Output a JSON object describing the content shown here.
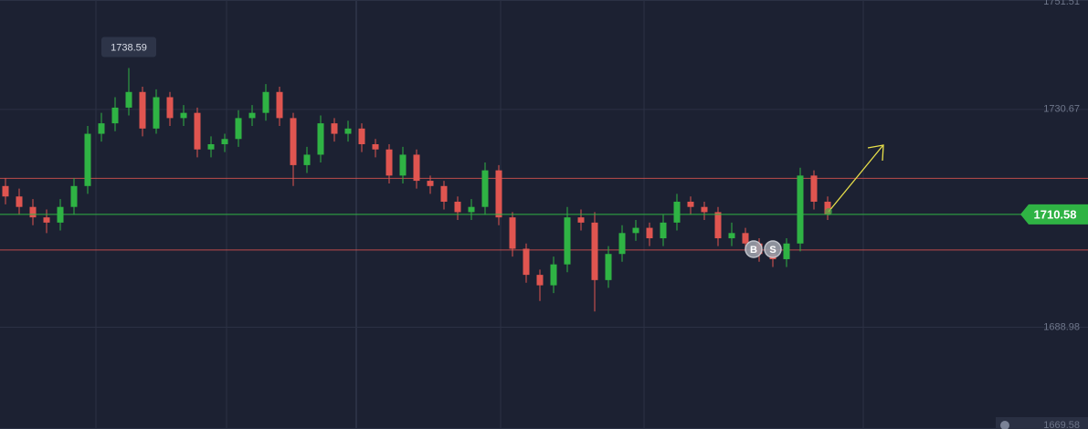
{
  "chart_data": {
    "type": "candlestick",
    "open": [
      1716,
      1714,
      1712,
      1710,
      1709,
      1712,
      1716,
      1726,
      1728,
      1731,
      1734,
      1727,
      1733,
      1729,
      1730,
      1723,
      1724,
      1725,
      1729,
      1730,
      1734,
      1729,
      1720,
      1722,
      1728,
      1726,
      1727,
      1724,
      1723,
      1718,
      1722,
      1717,
      1716,
      1713,
      1711,
      1712,
      1719,
      1710,
      1704,
      1699,
      1697,
      1701,
      1710,
      1709,
      1698,
      1703,
      1707,
      1708,
      1706,
      1709,
      1713,
      1712,
      1711,
      1706,
      1707,
      1705,
      1703,
      1702,
      1705,
      1718,
      1713
    ],
    "high": [
      1717.5,
      1715.5,
      1713.5,
      1711.5,
      1713.5,
      1717.5,
      1727.5,
      1730,
      1733,
      1738.59,
      1735,
      1734.5,
      1734,
      1731.5,
      1731,
      1725.5,
      1726,
      1730.5,
      1731.5,
      1735.5,
      1735,
      1730,
      1723.5,
      1729.5,
      1729,
      1728.5,
      1728,
      1725,
      1724,
      1723.5,
      1723,
      1718,
      1717,
      1714,
      1713.5,
      1720.5,
      1720,
      1711,
      1705,
      1700,
      1702.5,
      1712,
      1711.5,
      1711,
      1704.5,
      1708.5,
      1709.5,
      1709,
      1710.5,
      1714.5,
      1714,
      1713,
      1712,
      1709,
      1708,
      1706,
      1704,
      1706,
      1719.5,
      1719,
      1714
    ],
    "low": [
      1712.5,
      1710.5,
      1708.5,
      1707,
      1707.5,
      1710.5,
      1714.5,
      1724.5,
      1726.5,
      1729.5,
      1725.5,
      1726,
      1727.5,
      1727.5,
      1721.5,
      1721.5,
      1722.5,
      1723.5,
      1727.5,
      1728.5,
      1727.5,
      1716,
      1718.5,
      1720.5,
      1724.5,
      1724.5,
      1722.5,
      1721.5,
      1716.5,
      1716.5,
      1715.5,
      1714.5,
      1711.5,
      1709.5,
      1709.5,
      1710.5,
      1708.5,
      1702.5,
      1697.5,
      1694,
      1695.5,
      1699.5,
      1707.5,
      1692,
      1696.5,
      1701.5,
      1705.5,
      1704.5,
      1704.5,
      1707.5,
      1710.5,
      1709.5,
      1704.5,
      1704.5,
      1703.5,
      1701.5,
      1700.5,
      1700.5,
      1703.5,
      1711.5,
      1709.5
    ],
    "close": [
      1714,
      1712,
      1710,
      1709,
      1712,
      1716,
      1726,
      1728,
      1731,
      1734,
      1727,
      1733,
      1729,
      1730,
      1723,
      1724,
      1725,
      1729,
      1730,
      1734,
      1729,
      1720,
      1722,
      1728,
      1726,
      1727,
      1724,
      1723,
      1718,
      1722,
      1717,
      1716,
      1713,
      1711,
      1712,
      1719,
      1710,
      1704,
      1699,
      1697,
      1701,
      1710,
      1709,
      1698,
      1703,
      1707,
      1708,
      1706,
      1709,
      1713,
      1712,
      1711,
      1706,
      1707,
      1705,
      1703,
      1702,
      1705,
      1718,
      1713,
      1710.58
    ],
    "up_color": "#2fb344",
    "down_color": "#e05550",
    "levels": [
      1717.47,
      1703.75
    ],
    "level_color": "#d9534f",
    "ylim": [
      1669.5,
      1751.6
    ],
    "yticks": [
      1751.51,
      1730.67,
      1688.98,
      1669.58
    ],
    "markers": [
      "B",
      "S"
    ]
  }
}
